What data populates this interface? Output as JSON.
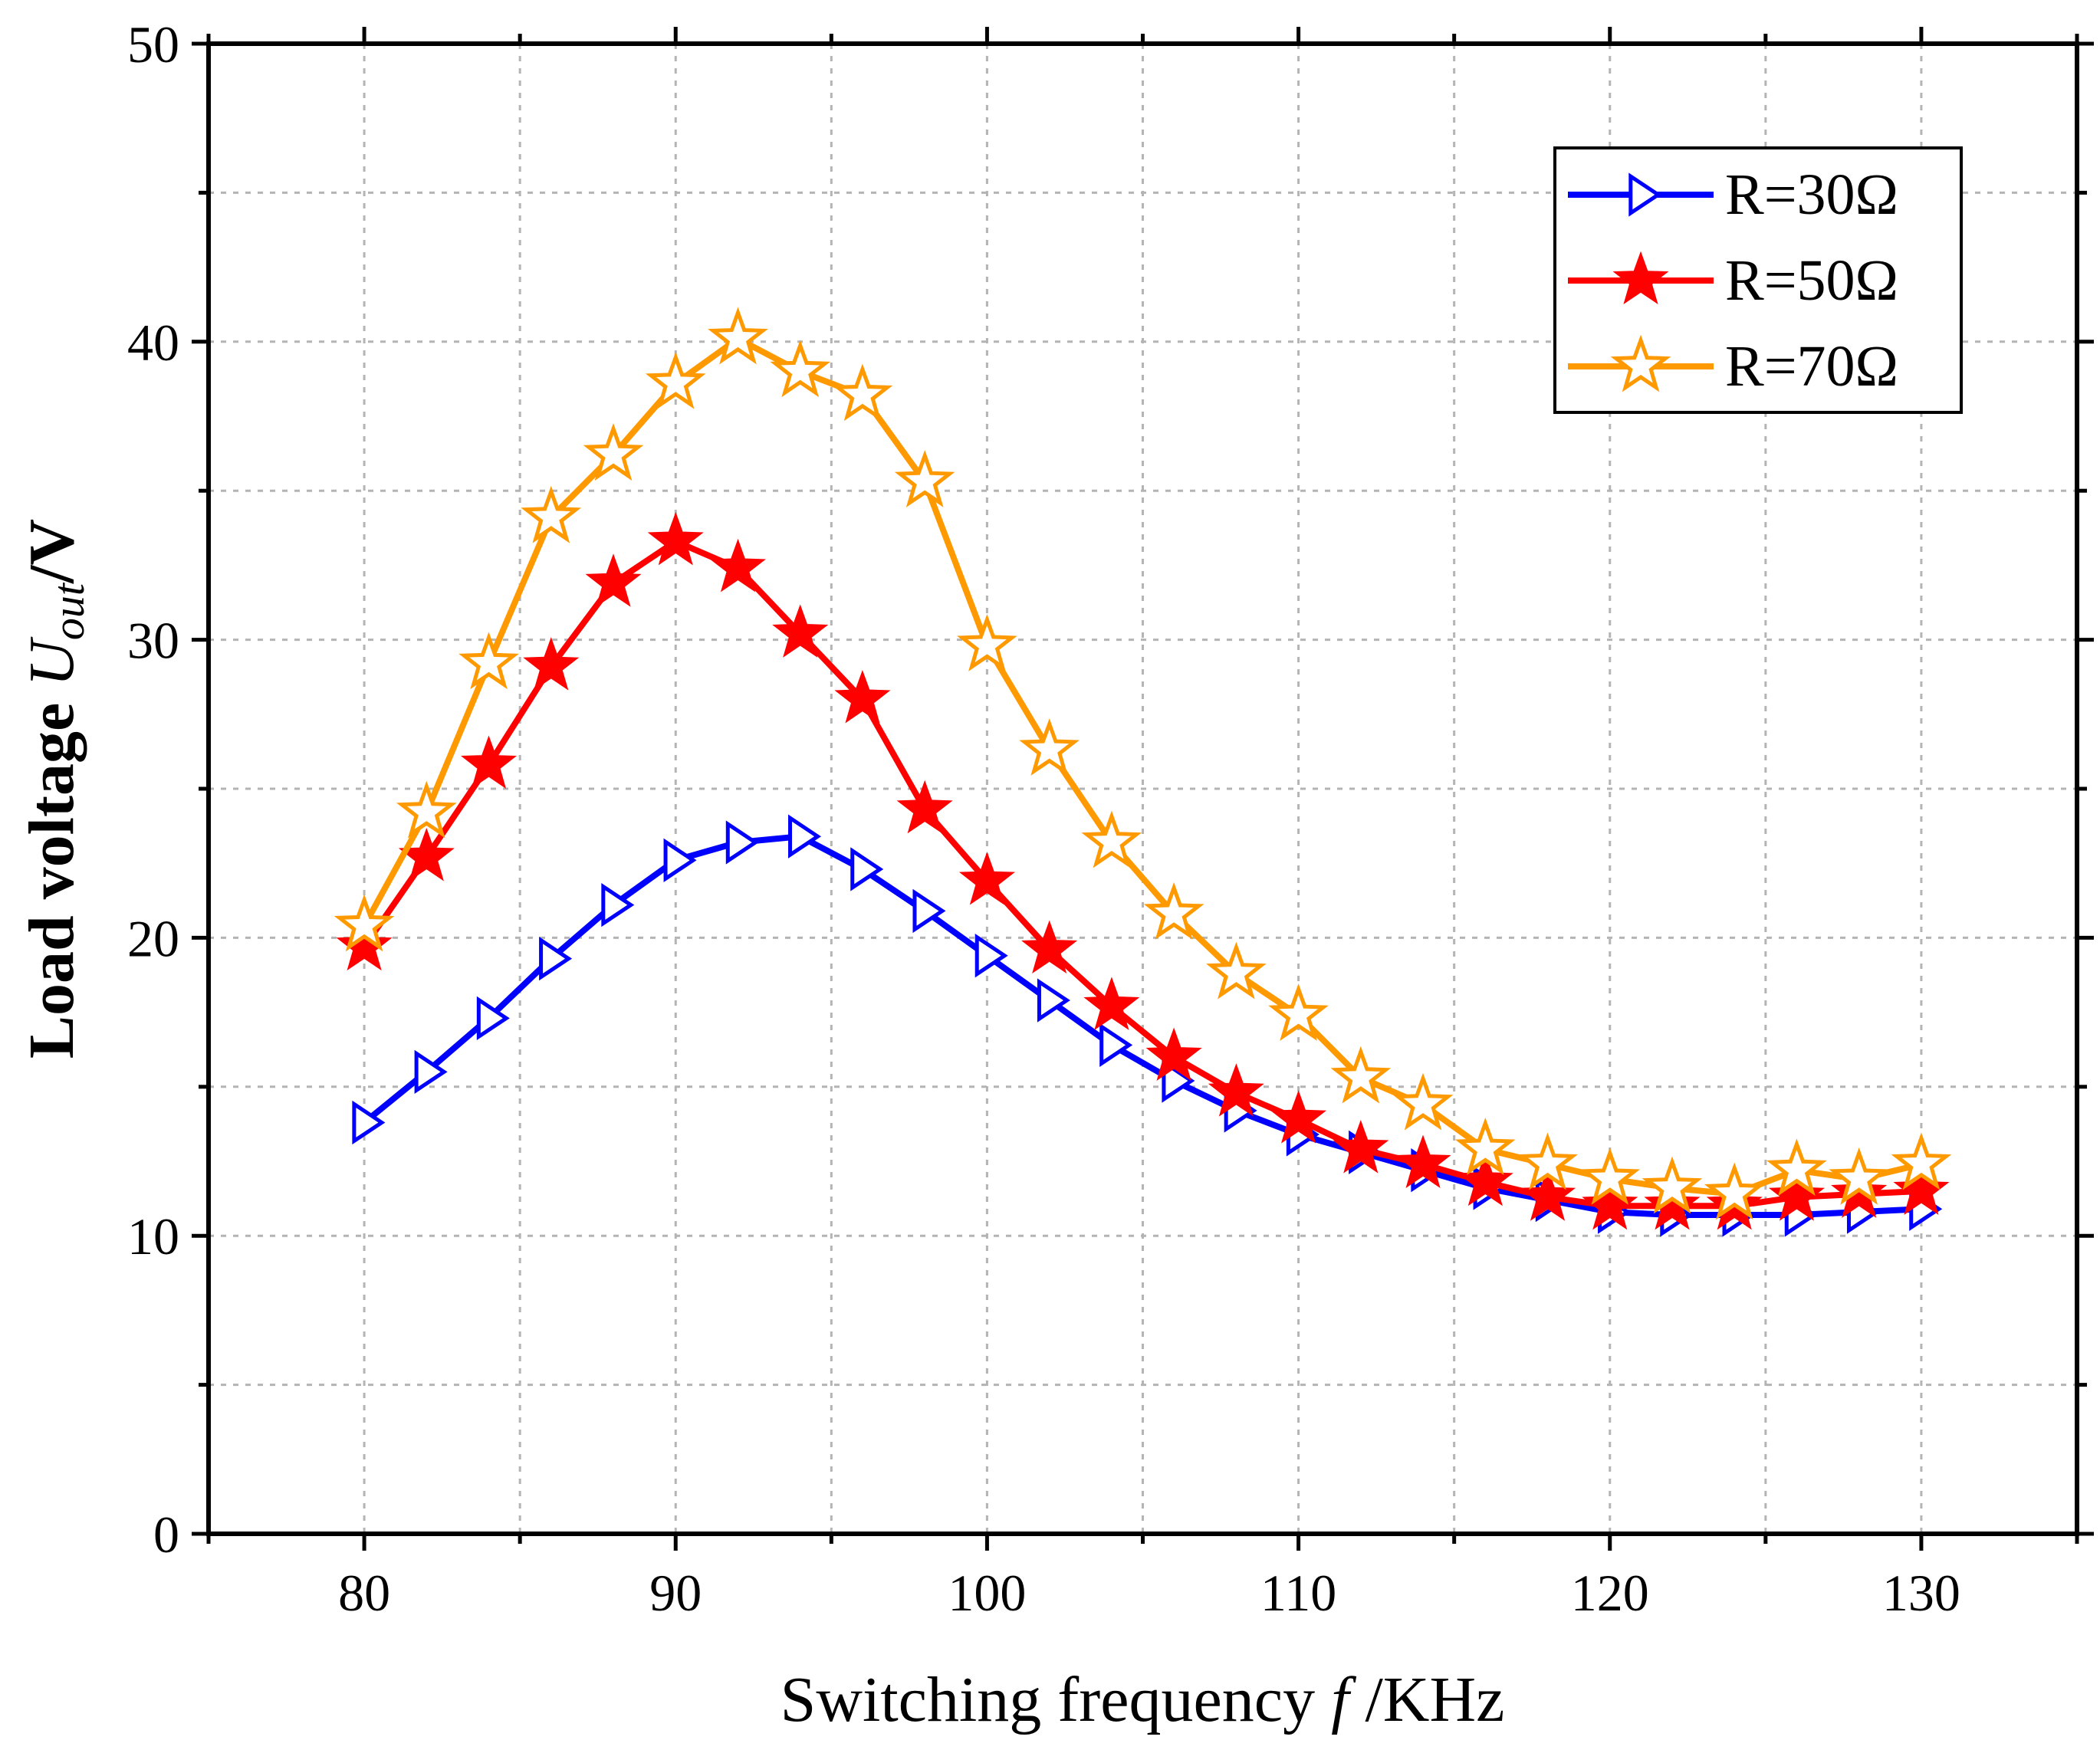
{
  "chart_data": {
    "type": "line",
    "xlabel": {
      "prefix": "Switching frequency ",
      "var": "f",
      "suffix": " /KHz"
    },
    "ylabel": {
      "prefix": "Load voltage ",
      "var": "U",
      "sub": "out",
      "suffix": "/V"
    },
    "xlim": [
      75,
      135
    ],
    "ylim": [
      0,
      50
    ],
    "xticks": [
      80,
      90,
      100,
      110,
      120,
      130
    ],
    "xtick_labels": [
      "80",
      "90",
      "100",
      "110",
      "120",
      "130"
    ],
    "yticks": [
      0,
      10,
      20,
      30,
      40,
      50
    ],
    "ytick_labels": [
      "0",
      "10",
      "20",
      "30",
      "40",
      "50"
    ],
    "grid": true,
    "legend_position": "top-right",
    "x": [
      80,
      82,
      84,
      86,
      88,
      90,
      92,
      94,
      96,
      98,
      100,
      102,
      104,
      106,
      108,
      110,
      112,
      114,
      116,
      118,
      120,
      122,
      124,
      126,
      128,
      130
    ],
    "series": [
      {
        "name": "R=30Ω",
        "color": "#0000ff",
        "marker": "right-triangle",
        "values": [
          13.8,
          15.5,
          17.3,
          19.3,
          21.1,
          22.6,
          23.2,
          23.4,
          22.3,
          20.9,
          19.4,
          17.9,
          16.4,
          15.2,
          14.2,
          13.4,
          12.8,
          12.2,
          11.6,
          11.2,
          10.8,
          10.7,
          10.7,
          10.7,
          10.8,
          10.9
        ]
      },
      {
        "name": "R=50Ω",
        "color": "#ff0000",
        "marker": "filled-star",
        "values": [
          19.7,
          22.7,
          25.8,
          29.1,
          31.9,
          33.3,
          32.4,
          30.2,
          28.0,
          24.3,
          21.9,
          19.6,
          17.7,
          16.0,
          14.8,
          13.9,
          12.9,
          12.4,
          11.8,
          11.3,
          11.0,
          11.0,
          11.0,
          11.3,
          11.4,
          11.5
        ]
      },
      {
        "name": "R=70Ω",
        "color": "#ff9900",
        "marker": "open-star",
        "values": [
          20.4,
          24.2,
          29.2,
          34.1,
          36.2,
          38.6,
          40.1,
          39.0,
          38.2,
          35.3,
          29.8,
          26.3,
          23.2,
          20.8,
          18.8,
          17.4,
          15.3,
          14.4,
          12.9,
          12.4,
          11.9,
          11.6,
          11.4,
          12.2,
          11.9,
          12.4
        ]
      }
    ]
  }
}
